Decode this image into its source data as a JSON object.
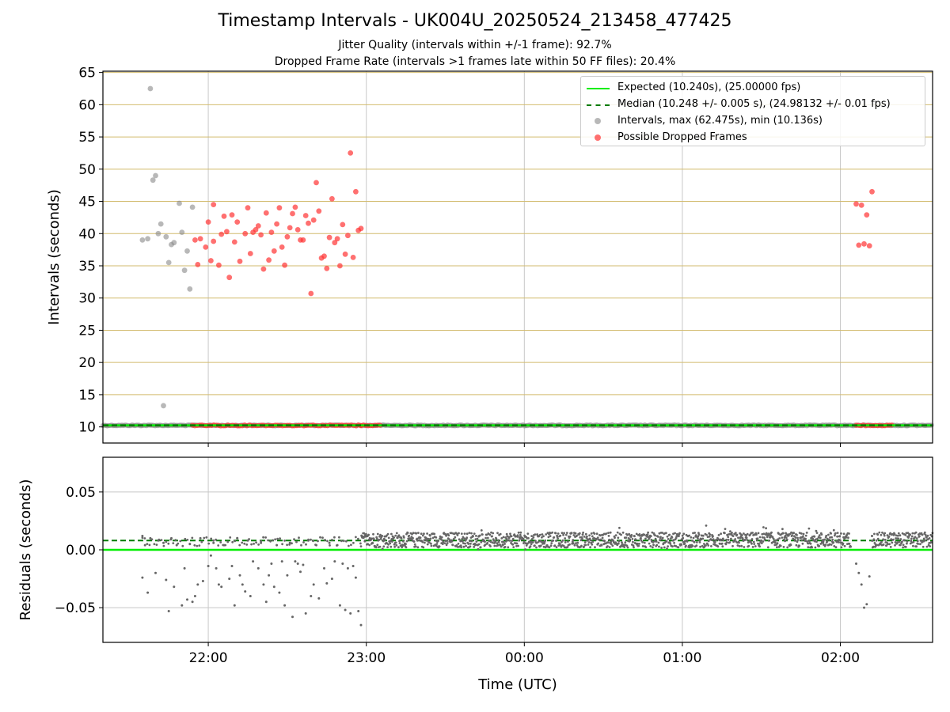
{
  "title": "Timestamp Intervals - UK004U_20250524_213458_477425",
  "subtitle_jitter": "Jitter Quality (intervals within +/-1 frame): 92.7%",
  "subtitle_dropped": "Dropped Frame Rate (intervals >1 frames late within 50 FF files): 20.4%",
  "legend": {
    "expected": "Expected (10.240s), (25.00000 fps)",
    "median": "Median (10.248 +/- 0.005 s), (24.98132 +/- 0.01 fps)",
    "intervals": "Intervals, max (62.475s), min (10.136s)",
    "dropped": "Possible Dropped Frames"
  },
  "colors": {
    "expected": "#00ee00",
    "median": "#007a00",
    "intervals": "#888888",
    "dropped": "#ff3333",
    "hgrid_top": "#d2bb6e",
    "grid": "#c8c8c8",
    "residual_dots": "#666666"
  },
  "chart_data": [
    {
      "type": "scatter",
      "panel": "intervals",
      "ylabel": "Intervals (seconds)",
      "x_axis": "time_utc",
      "xlim": [
        "21:20",
        "02:35"
      ],
      "ylim": [
        7.5,
        65.2
      ],
      "yticks": [
        10,
        15,
        20,
        25,
        30,
        35,
        40,
        45,
        50,
        55,
        60,
        65
      ],
      "xticks": [
        "22:00",
        "23:00",
        "00:00",
        "01:00",
        "02:00"
      ],
      "expected_value": 10.24,
      "median_value": 10.248,
      "series": [
        {
          "name": "Intervals, max (62.475s), min (10.136s)",
          "points": [
            [
              "21:35",
              39.0
            ],
            [
              "21:37",
              39.2
            ],
            [
              "21:38",
              62.5
            ],
            [
              "21:39",
              48.3
            ],
            [
              "21:40",
              49.0
            ],
            [
              "21:41",
              40.0
            ],
            [
              "21:42",
              41.5
            ],
            [
              "21:43",
              13.3
            ],
            [
              "21:44",
              39.5
            ],
            [
              "21:45",
              35.5
            ],
            [
              "21:46",
              38.3
            ],
            [
              "21:47",
              38.6
            ],
            [
              "21:49",
              44.7
            ],
            [
              "21:50",
              40.2
            ],
            [
              "21:51",
              34.3
            ],
            [
              "21:52",
              37.3
            ],
            [
              "21:53",
              31.4
            ],
            [
              "21:54",
              44.1
            ]
          ]
        },
        {
          "name": "Possible Dropped Frames",
          "points": [
            [
              "21:55",
              39.0
            ],
            [
              "21:56",
              35.2
            ],
            [
              "21:57",
              39.2
            ],
            [
              "21:59",
              37.9
            ],
            [
              "22:00",
              41.8
            ],
            [
              "22:01",
              35.8
            ],
            [
              "22:02",
              38.8
            ],
            [
              "22:02",
              44.5
            ],
            [
              "22:04",
              35.1
            ],
            [
              "22:05",
              39.9
            ],
            [
              "22:06",
              42.7
            ],
            [
              "22:07",
              40.3
            ],
            [
              "22:08",
              33.2
            ],
            [
              "22:09",
              42.9
            ],
            [
              "22:10",
              38.7
            ],
            [
              "22:11",
              41.8
            ],
            [
              "22:12",
              35.7
            ],
            [
              "22:14",
              40.0
            ],
            [
              "22:15",
              44.0
            ],
            [
              "22:16",
              36.9
            ],
            [
              "22:17",
              40.2
            ],
            [
              "22:18",
              40.6
            ],
            [
              "22:19",
              41.2
            ],
            [
              "22:20",
              39.8
            ],
            [
              "22:21",
              34.5
            ],
            [
              "22:22",
              43.2
            ],
            [
              "22:23",
              35.9
            ],
            [
              "22:24",
              40.2
            ],
            [
              "22:25",
              37.3
            ],
            [
              "22:26",
              41.5
            ],
            [
              "22:27",
              44.0
            ],
            [
              "22:28",
              37.9
            ],
            [
              "22:29",
              35.1
            ],
            [
              "22:30",
              39.5
            ],
            [
              "22:31",
              40.9
            ],
            [
              "22:32",
              43.1
            ],
            [
              "22:33",
              44.1
            ],
            [
              "22:34",
              40.6
            ],
            [
              "22:35",
              39.0
            ],
            [
              "22:36",
              39.0
            ],
            [
              "22:37",
              42.8
            ],
            [
              "22:38",
              41.6
            ],
            [
              "22:39",
              30.7
            ],
            [
              "22:40",
              42.1
            ],
            [
              "22:41",
              47.9
            ],
            [
              "22:42",
              43.5
            ],
            [
              "22:43",
              36.2
            ],
            [
              "22:44",
              36.5
            ],
            [
              "22:45",
              34.6
            ],
            [
              "22:46",
              39.4
            ],
            [
              "22:47",
              45.4
            ],
            [
              "22:48",
              38.6
            ],
            [
              "22:49",
              39.2
            ],
            [
              "22:50",
              35.0
            ],
            [
              "22:51",
              41.4
            ],
            [
              "22:52",
              36.8
            ],
            [
              "22:53",
              39.7
            ],
            [
              "22:54",
              52.5
            ],
            [
              "22:55",
              36.3
            ],
            [
              "22:56",
              46.5
            ],
            [
              "22:57",
              40.5
            ],
            [
              "22:58",
              40.8
            ],
            [
              "02:06",
              44.6
            ],
            [
              "02:07",
              38.2
            ],
            [
              "02:08",
              44.4
            ],
            [
              "02:09",
              38.4
            ],
            [
              "02:10",
              42.9
            ],
            [
              "02:11",
              38.1
            ],
            [
              "02:12",
              46.5
            ]
          ]
        }
      ],
      "baseline_bands": [
        {
          "series": "Intervals, max (62.475s), min (10.136s)",
          "from": "21:20",
          "to": "02:35",
          "value": 10.24
        },
        {
          "series": "Possible Dropped Frames",
          "from": "21:54",
          "to": "22:58",
          "value": 10.24
        },
        {
          "series": "Possible Dropped Frames",
          "from": "22:58",
          "to": "23:06",
          "value": 10.24
        },
        {
          "series": "Possible Dropped Frames",
          "from": "02:06",
          "to": "02:20",
          "value": 10.24
        }
      ]
    },
    {
      "type": "scatter",
      "panel": "residuals",
      "xlabel": "Time (UTC)",
      "ylabel": "Residuals (seconds)",
      "x_axis": "time_utc",
      "xlim": [
        "21:20",
        "02:35"
      ],
      "ylim": [
        -0.08,
        0.08
      ],
      "yticks": [
        0.05,
        0.0,
        -0.05
      ],
      "ytick_labels": [
        "0.05",
        "0.00",
        "−0.05"
      ],
      "xticks": [
        "22:00",
        "23:00",
        "00:00",
        "01:00",
        "02:00"
      ],
      "expected_value": 0.0,
      "median_value": 0.008,
      "residual_dense_band": {
        "from": "22:58",
        "to": "02:35",
        "center": 0.0085,
        "spread": 0.0065,
        "gaps": [
          [
            "02:04",
            "02:12"
          ]
        ]
      },
      "residual_points": [
        [
          "21:35",
          0.012
        ],
        [
          "21:35",
          -0.024
        ],
        [
          "21:36",
          0.004
        ],
        [
          "21:37",
          -0.037
        ],
        [
          "21:38",
          0.01
        ],
        [
          "21:40",
          -0.02
        ],
        [
          "21:41",
          0.008
        ],
        [
          "21:43",
          0.006
        ],
        [
          "21:44",
          -0.026
        ],
        [
          "21:45",
          -0.053
        ],
        [
          "21:46",
          0.01
        ],
        [
          "21:47",
          -0.032
        ],
        [
          "21:48",
          0.004
        ],
        [
          "21:50",
          -0.048
        ],
        [
          "21:51",
          -0.016
        ],
        [
          "21:52",
          -0.043
        ],
        [
          "21:53",
          0.005
        ],
        [
          "21:54",
          -0.045
        ],
        [
          "21:55",
          -0.04
        ],
        [
          "21:56",
          -0.03
        ],
        [
          "21:57",
          0.01
        ],
        [
          "21:58",
          -0.027
        ],
        [
          "22:00",
          -0.014
        ],
        [
          "22:01",
          -0.005
        ],
        [
          "22:02",
          0.006
        ],
        [
          "22:03",
          -0.016
        ],
        [
          "22:04",
          -0.03
        ],
        [
          "22:05",
          -0.032
        ],
        [
          "22:06",
          0.004
        ],
        [
          "22:08",
          -0.025
        ],
        [
          "22:09",
          -0.014
        ],
        [
          "22:10",
          -0.048
        ],
        [
          "22:11",
          0.01
        ],
        [
          "22:12",
          -0.022
        ],
        [
          "22:13",
          -0.03
        ],
        [
          "22:14",
          -0.036
        ],
        [
          "22:15",
          0.008
        ],
        [
          "22:16",
          -0.04
        ],
        [
          "22:17",
          -0.01
        ],
        [
          "22:19",
          -0.016
        ],
        [
          "22:20",
          0.006
        ],
        [
          "22:21",
          -0.03
        ],
        [
          "22:22",
          -0.045
        ],
        [
          "22:23",
          -0.022
        ],
        [
          "22:24",
          -0.012
        ],
        [
          "22:25",
          -0.032
        ],
        [
          "22:26",
          0.004
        ],
        [
          "22:27",
          -0.037
        ],
        [
          "22:28",
          -0.01
        ],
        [
          "22:29",
          -0.048
        ],
        [
          "22:30",
          -0.022
        ],
        [
          "22:31",
          0.006
        ],
        [
          "22:32",
          -0.058
        ],
        [
          "22:33",
          -0.01
        ],
        [
          "22:34",
          -0.012
        ],
        [
          "22:35",
          -0.019
        ],
        [
          "22:36",
          -0.013
        ],
        [
          "22:37",
          -0.055
        ],
        [
          "22:38",
          0.008
        ],
        [
          "22:39",
          -0.04
        ],
        [
          "22:40",
          -0.03
        ],
        [
          "22:41",
          0.004
        ],
        [
          "22:42",
          -0.042
        ],
        [
          "22:44",
          -0.016
        ],
        [
          "22:45",
          -0.029
        ],
        [
          "22:46",
          0.006
        ],
        [
          "22:47",
          -0.025
        ],
        [
          "22:48",
          -0.01
        ],
        [
          "22:49",
          0.004
        ],
        [
          "22:50",
          -0.048
        ],
        [
          "22:51",
          -0.012
        ],
        [
          "22:52",
          -0.052
        ],
        [
          "22:53",
          -0.016
        ],
        [
          "22:54",
          -0.055
        ],
        [
          "22:55",
          -0.014
        ],
        [
          "22:56",
          -0.024
        ],
        [
          "22:57",
          -0.053
        ],
        [
          "22:58",
          -0.065
        ],
        [
          "02:06",
          -0.012
        ],
        [
          "02:07",
          -0.02
        ],
        [
          "02:08",
          -0.03
        ],
        [
          "02:09",
          -0.05
        ],
        [
          "02:10",
          -0.047
        ],
        [
          "02:11",
          -0.023
        ],
        [
          "02:12",
          0.012
        ]
      ]
    }
  ]
}
